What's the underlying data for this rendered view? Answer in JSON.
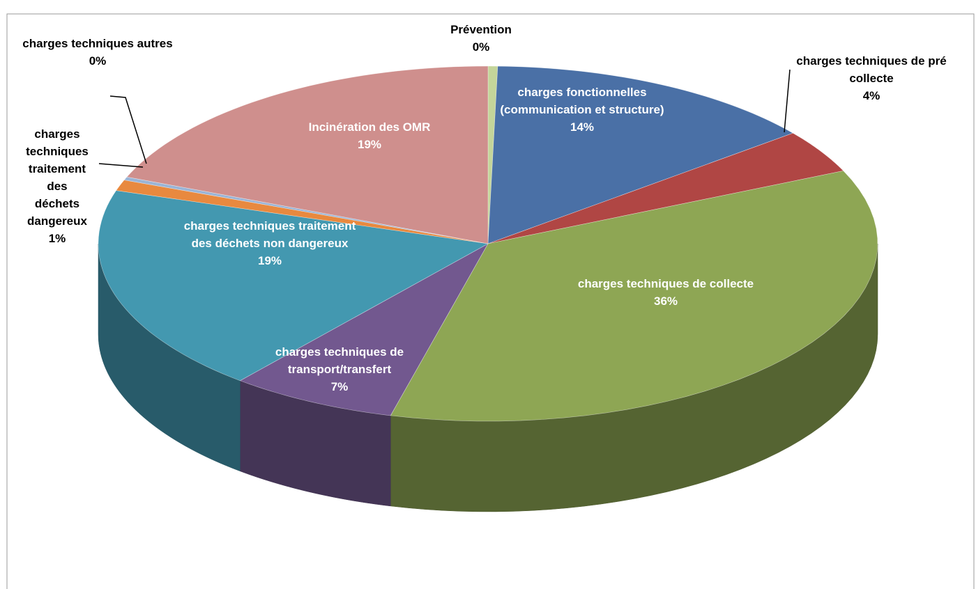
{
  "chart_data": {
    "type": "pie",
    "categories": [
      "Prévention",
      "charges fonctionnelles (communication et structure)",
      "charges techniques de pré collecte",
      "charges techniques de collecte",
      "charges techniques de transport/transfert",
      "charges techniques traitement des déchets non dangereux",
      "charges techniques traitement des déchets dangereux",
      "charges techniques autres",
      "Incinération des OMR"
    ],
    "values": [
      0.4,
      14,
      4,
      36,
      7,
      19,
      1,
      0.3,
      19
    ],
    "value_labels": [
      "0%",
      "14%",
      "4%",
      "36%",
      "7%",
      "19%",
      "1%",
      "0%",
      "19%"
    ],
    "colors": [
      "#c4d59a",
      "#4a70a6",
      "#b04644",
      "#8ea654",
      "#72588f",
      "#4398b0",
      "#e8893f",
      "#9ab4d6",
      "#cf8f8d"
    ]
  }
}
